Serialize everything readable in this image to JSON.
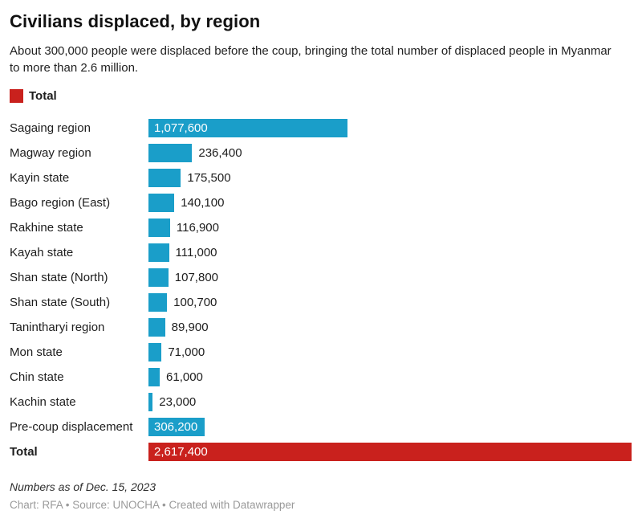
{
  "header": {
    "title": "Civilians displaced, by region",
    "subtitle": "About 300,000 people were displaced before the coup, bringing the total number of displaced people in Myanmar to more than 2.6 million."
  },
  "legend": {
    "label": "Total",
    "color": "#c9211d"
  },
  "chart_data": {
    "type": "bar",
    "orientation": "horizontal",
    "title": "Civilians displaced, by region",
    "xlim": [
      0,
      2617400
    ],
    "grid": false,
    "legend_position": "top-left",
    "colors": {
      "region_bar": "#1a9ec9",
      "total_bar": "#c9211d"
    },
    "categories": [
      "Sagaing region",
      "Magway region",
      "Kayin state",
      "Bago region (East)",
      "Rakhine state",
      "Kayah state",
      "Shan state (North)",
      "Shan state (South)",
      "Tanintharyi region",
      "Mon state",
      "Chin state",
      "Kachin state",
      "Pre-coup displacement",
      "Total"
    ],
    "values": [
      1077600,
      236400,
      175500,
      140100,
      116900,
      111000,
      107800,
      100700,
      89900,
      71000,
      61000,
      23000,
      306200,
      2617400
    ],
    "rows": [
      {
        "label": "Sagaing region",
        "value": 1077600,
        "display": "1,077,600",
        "color": "#1a9ec9",
        "label_inside": true,
        "bold": false
      },
      {
        "label": "Magway region",
        "value": 236400,
        "display": "236,400",
        "color": "#1a9ec9",
        "label_inside": false,
        "bold": false
      },
      {
        "label": "Kayin state",
        "value": 175500,
        "display": "175,500",
        "color": "#1a9ec9",
        "label_inside": false,
        "bold": false
      },
      {
        "label": "Bago region (East)",
        "value": 140100,
        "display": "140,100",
        "color": "#1a9ec9",
        "label_inside": false,
        "bold": false
      },
      {
        "label": "Rakhine state",
        "value": 116900,
        "display": "116,900",
        "color": "#1a9ec9",
        "label_inside": false,
        "bold": false
      },
      {
        "label": "Kayah state",
        "value": 111000,
        "display": "111,000",
        "color": "#1a9ec9",
        "label_inside": false,
        "bold": false
      },
      {
        "label": "Shan state (North)",
        "value": 107800,
        "display": "107,800",
        "color": "#1a9ec9",
        "label_inside": false,
        "bold": false
      },
      {
        "label": "Shan state (South)",
        "value": 100700,
        "display": "100,700",
        "color": "#1a9ec9",
        "label_inside": false,
        "bold": false
      },
      {
        "label": "Tanintharyi region",
        "value": 89900,
        "display": "89,900",
        "color": "#1a9ec9",
        "label_inside": false,
        "bold": false
      },
      {
        "label": "Mon state",
        "value": 71000,
        "display": "71,000",
        "color": "#1a9ec9",
        "label_inside": false,
        "bold": false
      },
      {
        "label": "Chin state",
        "value": 61000,
        "display": "61,000",
        "color": "#1a9ec9",
        "label_inside": false,
        "bold": false
      },
      {
        "label": "Kachin state",
        "value": 23000,
        "display": "23,000",
        "color": "#1a9ec9",
        "label_inside": false,
        "bold": false
      },
      {
        "label": "Pre-coup displacement",
        "value": 306200,
        "display": "306,200",
        "color": "#1a9ec9",
        "label_inside": true,
        "bold": false
      },
      {
        "label": "Total",
        "value": 2617400,
        "display": "2,617,400",
        "color": "#c9211d",
        "label_inside": true,
        "bold": true
      }
    ]
  },
  "footer": {
    "note": "Numbers as of Dec. 15, 2023",
    "credit": "Chart: RFA • Source: UNOCHA • Created with Datawrapper"
  }
}
